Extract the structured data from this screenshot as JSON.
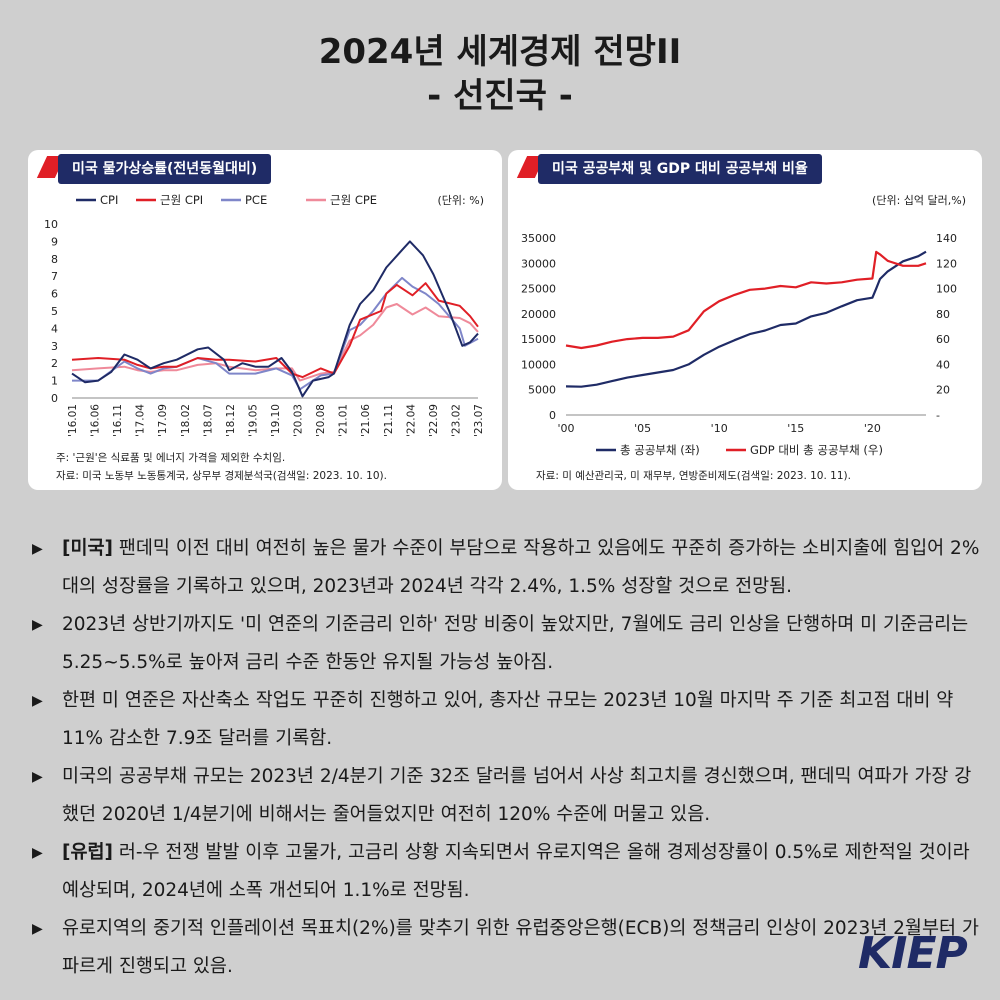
{
  "title_line1": "2024년 세계경제 전망II",
  "title_line2": "- 선진국 -",
  "left_card": {
    "title": "미국 물가상승률(전년동월대비)",
    "unit": "(단위: %)",
    "note1": "주: '근원'은 식료품 및 에너지 가격을 제외한 수치임.",
    "note2": "자료: 미국 노동부 노동통계국, 상무부 경제분석국(검색일: 2023. 10. 10)."
  },
  "right_card": {
    "title": "미국 공공부채 및 GDP 대비 공공부채 비율",
    "unit": "(단위: 십억 달러,%)",
    "note1": "자료: 미 예산관리국, 미 재무부, 연방준비제도(검색일: 2023. 10. 11)."
  },
  "chart_data": [
    {
      "type": "line",
      "title": "미국 물가상승률(전년동월대비)",
      "ylabel": "(단위: %)",
      "ylim": [
        0,
        10
      ],
      "y_ticks": [
        0,
        1,
        2,
        3,
        4,
        5,
        6,
        7,
        8,
        9,
        10
      ],
      "x_tick_labels": [
        "'16.01",
        "'16.06",
        "'16.11",
        "'17.04",
        "'17.09",
        "'18.02",
        "'18.07",
        "'18.12",
        "'19.05",
        "'19.10",
        "'20.03",
        "'20.08",
        "'21.01",
        "'21.06",
        "'21.11",
        "'22.04",
        "'22.09",
        "'23.02",
        "'23.07"
      ],
      "x_range": [
        2016.0,
        2023.75
      ],
      "legend_position": "top",
      "series": [
        {
          "name": "CPI",
          "color": "#1f2b66",
          "points": [
            [
              2016.0,
              1.4
            ],
            [
              2016.25,
              0.9
            ],
            [
              2016.5,
              1.0
            ],
            [
              2016.75,
              1.5
            ],
            [
              2017.0,
              2.5
            ],
            [
              2017.25,
              2.2
            ],
            [
              2017.5,
              1.7
            ],
            [
              2017.75,
              2.0
            ],
            [
              2018.0,
              2.2
            ],
            [
              2018.4,
              2.8
            ],
            [
              2018.6,
              2.9
            ],
            [
              2018.9,
              2.2
            ],
            [
              2019.0,
              1.6
            ],
            [
              2019.25,
              2.0
            ],
            [
              2019.5,
              1.8
            ],
            [
              2019.75,
              1.8
            ],
            [
              2020.0,
              2.3
            ],
            [
              2020.2,
              1.5
            ],
            [
              2020.4,
              0.1
            ],
            [
              2020.6,
              1.0
            ],
            [
              2020.9,
              1.2
            ],
            [
              2021.0,
              1.4
            ],
            [
              2021.3,
              4.2
            ],
            [
              2021.5,
              5.4
            ],
            [
              2021.75,
              6.2
            ],
            [
              2022.0,
              7.5
            ],
            [
              2022.3,
              8.5
            ],
            [
              2022.45,
              9.0
            ],
            [
              2022.7,
              8.2
            ],
            [
              2022.9,
              7.1
            ],
            [
              2023.0,
              6.4
            ],
            [
              2023.2,
              5.0
            ],
            [
              2023.45,
              3.0
            ],
            [
              2023.6,
              3.2
            ],
            [
              2023.75,
              3.7
            ]
          ]
        },
        {
          "name": "근원 CPI",
          "color": "#e01f26",
          "points": [
            [
              2016.0,
              2.2
            ],
            [
              2016.5,
              2.3
            ],
            [
              2017.0,
              2.2
            ],
            [
              2017.25,
              1.9
            ],
            [
              2017.5,
              1.7
            ],
            [
              2017.75,
              1.8
            ],
            [
              2018.0,
              1.8
            ],
            [
              2018.4,
              2.3
            ],
            [
              2018.75,
              2.2
            ],
            [
              2019.0,
              2.2
            ],
            [
              2019.5,
              2.1
            ],
            [
              2019.9,
              2.3
            ],
            [
              2020.2,
              1.4
            ],
            [
              2020.4,
              1.2
            ],
            [
              2020.75,
              1.7
            ],
            [
              2021.0,
              1.4
            ],
            [
              2021.3,
              3.0
            ],
            [
              2021.5,
              4.5
            ],
            [
              2021.9,
              5.0
            ],
            [
              2022.0,
              6.0
            ],
            [
              2022.2,
              6.5
            ],
            [
              2022.5,
              5.9
            ],
            [
              2022.75,
              6.6
            ],
            [
              2023.0,
              5.6
            ],
            [
              2023.4,
              5.3
            ],
            [
              2023.6,
              4.7
            ],
            [
              2023.75,
              4.1
            ]
          ]
        },
        {
          "name": "PCE",
          "color": "#7f86c9",
          "points": [
            [
              2016.0,
              1.0
            ],
            [
              2016.5,
              1.0
            ],
            [
              2017.0,
              2.1
            ],
            [
              2017.25,
              1.7
            ],
            [
              2017.5,
              1.4
            ],
            [
              2017.75,
              1.7
            ],
            [
              2018.0,
              1.8
            ],
            [
              2018.4,
              2.3
            ],
            [
              2018.75,
              2.0
            ],
            [
              2019.0,
              1.4
            ],
            [
              2019.5,
              1.4
            ],
            [
              2019.9,
              1.7
            ],
            [
              2020.2,
              1.3
            ],
            [
              2020.35,
              0.5
            ],
            [
              2020.75,
              1.3
            ],
            [
              2021.0,
              1.4
            ],
            [
              2021.3,
              3.9
            ],
            [
              2021.5,
              4.2
            ],
            [
              2021.75,
              5.0
            ],
            [
              2022.0,
              6.0
            ],
            [
              2022.3,
              6.9
            ],
            [
              2022.5,
              6.4
            ],
            [
              2022.75,
              6.0
            ],
            [
              2023.0,
              5.4
            ],
            [
              2023.4,
              4.0
            ],
            [
              2023.5,
              3.0
            ],
            [
              2023.75,
              3.4
            ]
          ]
        },
        {
          "name": "근원 CPE",
          "color": "#ef8a9a",
          "points": [
            [
              2016.0,
              1.6
            ],
            [
              2016.5,
              1.7
            ],
            [
              2017.0,
              1.8
            ],
            [
              2017.25,
              1.6
            ],
            [
              2017.5,
              1.5
            ],
            [
              2017.75,
              1.6
            ],
            [
              2018.0,
              1.6
            ],
            [
              2018.4,
              1.9
            ],
            [
              2018.75,
              2.0
            ],
            [
              2019.0,
              1.8
            ],
            [
              2019.5,
              1.6
            ],
            [
              2019.9,
              1.7
            ],
            [
              2020.2,
              1.7
            ],
            [
              2020.35,
              1.0
            ],
            [
              2020.75,
              1.4
            ],
            [
              2021.0,
              1.5
            ],
            [
              2021.3,
              3.3
            ],
            [
              2021.5,
              3.6
            ],
            [
              2021.75,
              4.2
            ],
            [
              2022.0,
              5.2
            ],
            [
              2022.2,
              5.4
            ],
            [
              2022.5,
              4.8
            ],
            [
              2022.75,
              5.2
            ],
            [
              2023.0,
              4.7
            ],
            [
              2023.4,
              4.6
            ],
            [
              2023.6,
              4.3
            ],
            [
              2023.75,
              3.8
            ]
          ]
        }
      ]
    },
    {
      "type": "line",
      "title": "미국 공공부채 및 GDP 대비 공공부채 비율",
      "ylabel": "(단위: 십억 달러,%)",
      "ylim_left": [
        0,
        35000
      ],
      "ylim_right": [
        0,
        140
      ],
      "y_ticks_left": [
        "0",
        "5000",
        "10000",
        "15000",
        "20000",
        "25000",
        "30000",
        "35000"
      ],
      "y_ticks_right": [
        "-",
        "20",
        "40",
        "60",
        "80",
        "100",
        "120",
        "140"
      ],
      "x_tick_labels": [
        "'00",
        "'05",
        "'10",
        "'15",
        "'20"
      ],
      "x_range": [
        2000.0,
        2023.5
      ],
      "legend_position": "bottom",
      "series": [
        {
          "name": "총 공공부채 (좌)",
          "axis": "left",
          "color": "#1f2b66",
          "points": [
            [
              2000,
              5650
            ],
            [
              2001,
              5600
            ],
            [
              2002,
              6000
            ],
            [
              2003,
              6700
            ],
            [
              2004,
              7400
            ],
            [
              2005,
              7900
            ],
            [
              2006,
              8400
            ],
            [
              2007,
              8900
            ],
            [
              2008,
              10000
            ],
            [
              2009,
              11900
            ],
            [
              2010,
              13500
            ],
            [
              2011,
              14800
            ],
            [
              2012,
              16000
            ],
            [
              2013,
              16700
            ],
            [
              2014,
              17800
            ],
            [
              2015,
              18100
            ],
            [
              2016,
              19500
            ],
            [
              2017,
              20200
            ],
            [
              2018,
              21500
            ],
            [
              2019,
              22700
            ],
            [
              2020.0,
              23200
            ],
            [
              2020.25,
              25000
            ],
            [
              2020.5,
              26900
            ],
            [
              2021,
              28400
            ],
            [
              2022,
              30400
            ],
            [
              2023,
              31400
            ],
            [
              2023.5,
              32300
            ]
          ]
        },
        {
          "name": "GDP 대비 총 공공부채 (우)",
          "axis": "right",
          "color": "#e01f26",
          "points": [
            [
              2000,
              55
            ],
            [
              2001,
              53
            ],
            [
              2002,
              55
            ],
            [
              2003,
              58
            ],
            [
              2004,
              60
            ],
            [
              2005,
              61
            ],
            [
              2006,
              61
            ],
            [
              2007,
              62
            ],
            [
              2008,
              67
            ],
            [
              2009,
              82
            ],
            [
              2010,
              90
            ],
            [
              2011,
              95
            ],
            [
              2012,
              99
            ],
            [
              2013,
              100
            ],
            [
              2014,
              102
            ],
            [
              2015,
              101
            ],
            [
              2016,
              105
            ],
            [
              2017,
              104
            ],
            [
              2018,
              105
            ],
            [
              2019,
              107
            ],
            [
              2020.0,
              108
            ],
            [
              2020.25,
              129
            ],
            [
              2020.5,
              127
            ],
            [
              2021,
              122
            ],
            [
              2022,
              118
            ],
            [
              2023,
              118
            ],
            [
              2023.5,
              120
            ]
          ]
        }
      ]
    }
  ],
  "bullets": [
    {
      "tag": "[미국]",
      "text": " 팬데믹 이전 대비 여전히 높은 물가 수준이 부담으로 작용하고 있음에도 꾸준히 증가하는 소비지출에 힘입어 2%대의 성장률을 기록하고 있으며, 2023년과 2024년 각각 2.4%, 1.5% 성장할 것으로 전망됨."
    },
    {
      "tag": "",
      "text": "2023년 상반기까지도 '미 연준의 기준금리 인하' 전망 비중이 높았지만, 7월에도 금리 인상을 단행하며 미 기준금리는 5.25~5.5%로 높아져 금리 수준 한동안 유지될 가능성 높아짐."
    },
    {
      "tag": "",
      "text": "한편 미 연준은 자산축소 작업도 꾸준히 진행하고 있어, 총자산 규모는 2023년 10월 마지막 주 기준 최고점 대비 약 11% 감소한 7.9조 달러를 기록함."
    },
    {
      "tag": "",
      "text": "미국의 공공부채 규모는 2023년 2/4분기 기준 32조 달러를 넘어서 사상 최고치를 경신했으며, 팬데믹 여파가 가장 강했던 2020년 1/4분기에 비해서는 줄어들었지만 여전히 120% 수준에 머물고 있음."
    },
    {
      "tag": "[유럽]",
      "text": " 러-우 전쟁 발발 이후 고물가, 고금리 상황 지속되면서 유로지역은 올해 경제성장률이 0.5%로 제한적일 것이라 예상되며, 2024년에 소폭 개선되어 1.1%로 전망됨."
    },
    {
      "tag": "",
      "text": "유로지역의 중기적 인플레이션 목표치(2%)를 맞추기 위한 유럽중앙은행(ECB)의 정책금리 인상이 2023년 2월부터 가파르게 진행되고 있음."
    }
  ],
  "logo": "KIEP"
}
